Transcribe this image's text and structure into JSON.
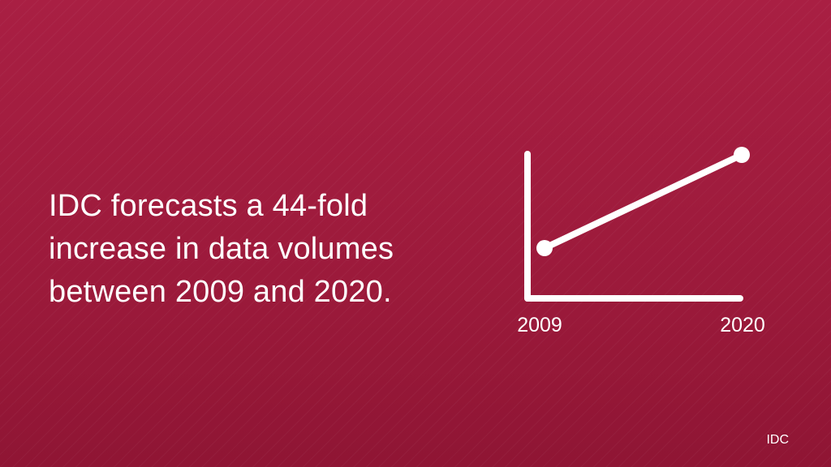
{
  "headline": "IDC forecasts a 44-fold increase in data volumes between 2009 and 2020.",
  "source": "IDC",
  "colors": {
    "background": "#a31d40",
    "foreground": "#ffffff"
  },
  "chart_data": {
    "type": "line",
    "x": [
      "2009",
      "2020"
    ],
    "series": [
      {
        "values": [
          1,
          44
        ]
      }
    ],
    "xlabel": "",
    "ylabel": "",
    "grid": false,
    "legend": "none"
  }
}
